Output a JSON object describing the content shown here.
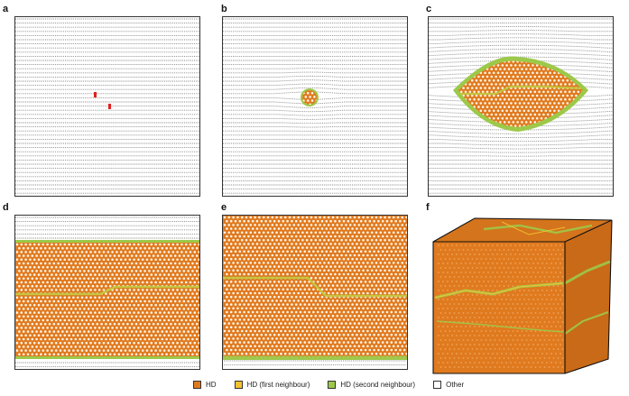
{
  "panels": [
    {
      "label": "a"
    },
    {
      "label": "b"
    },
    {
      "label": "c"
    },
    {
      "label": "d"
    },
    {
      "label": "e"
    },
    {
      "label": "f"
    }
  ],
  "legend": [
    {
      "label": "HD",
      "color": "#e07a1f"
    },
    {
      "label": "HD (first neighbour)",
      "color": "#f2c230"
    },
    {
      "label": "HD (second neighbour)",
      "color": "#9cc94a"
    },
    {
      "label": "Other",
      "color": "#ffffff"
    }
  ],
  "colors": {
    "hd": "#e07a1f",
    "first": "#f2c230",
    "second": "#9cc94a",
    "other": "#8a8a8a",
    "defect": "#e02020"
  }
}
